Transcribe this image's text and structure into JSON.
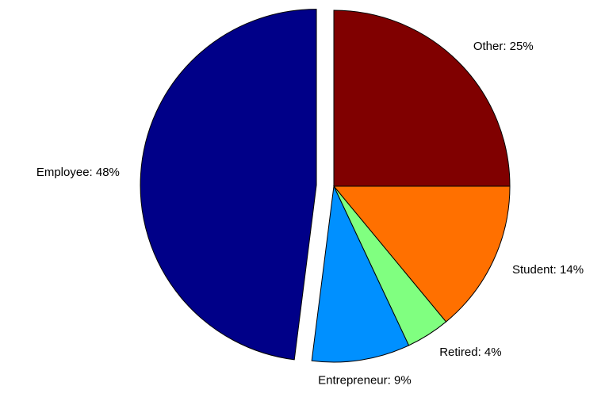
{
  "chart_data": {
    "type": "pie",
    "values": [
      25,
      14,
      4,
      9,
      48
    ],
    "value_labels": [
      "Other: 25%",
      "Student: 14%",
      "Retired: 4%",
      "Entrepreneur: 9%",
      "Employee: 48%"
    ],
    "colors": [
      "#800000",
      "#ff7000",
      "#80ff80",
      "#0090ff",
      "#000088"
    ],
    "explode": [
      false,
      false,
      false,
      false,
      true
    ]
  }
}
